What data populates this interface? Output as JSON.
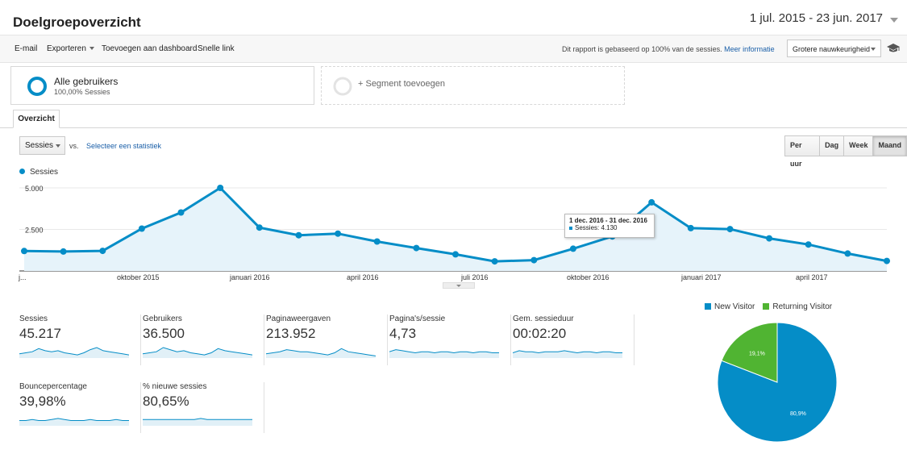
{
  "header": {
    "title": "Doelgroepoverzicht",
    "date_range": "1 jul. 2015 - 23 jun. 2017"
  },
  "toolbar": {
    "email": "E-mail",
    "export": "Exporteren",
    "add_dashboard": "Toevoegen aan dashboard",
    "quick_link": "Snelle link",
    "report_note": "Dit rapport is gebaseerd op 100% van de sessies.",
    "more_info": "Meer informatie",
    "precision": "Grotere nauwkeurigheid"
  },
  "segments": {
    "active": {
      "name": "Alle gebruikers",
      "sub": "100,00% Sessies"
    },
    "add": "+ Segment toevoegen"
  },
  "tabs": {
    "overview": "Overzicht"
  },
  "controls": {
    "metric": "Sessies",
    "vs": "vs.",
    "select_stat": "Selecteer een statistiek",
    "granularity": [
      "Per uur",
      "Dag",
      "Week",
      "Maand"
    ],
    "active_granularity": "Maand"
  },
  "chart_data": {
    "type": "area",
    "series": [
      {
        "name": "Sessies",
        "values": [
          1200,
          1170,
          1210,
          2550,
          3520,
          5000,
          2610,
          2150,
          2250,
          1770,
          1380,
          1000,
          580,
          650,
          1340,
          2080,
          4130,
          2580,
          2520,
          1960,
          1590,
          1050,
          600
        ]
      }
    ],
    "x_labels": [
      "j...",
      "oktober 2015",
      "januari 2016",
      "april 2016",
      "juli 2016",
      "oktober 2016",
      "januari 2017",
      "april 2017"
    ],
    "y_ticks": [
      "5.000",
      "2.500"
    ],
    "ylim": [
      0,
      5000
    ],
    "color": "#058dc7",
    "grid": true
  },
  "tooltip": {
    "period": "1 dec. 2016 - 31 dec. 2016",
    "label": "Sessies: 4.130"
  },
  "metrics": [
    {
      "label": "Sessies",
      "value": "45.217"
    },
    {
      "label": "Gebruikers",
      "value": "36.500"
    },
    {
      "label": "Paginaweergaven",
      "value": "213.952"
    },
    {
      "label": "Pagina's/sessie",
      "value": "4,73"
    },
    {
      "label": "Gem. sessieduur",
      "value": "00:02:20"
    },
    {
      "label": "Bouncepercentage",
      "value": "39,98%"
    },
    {
      "label": "% nieuwe sessies",
      "value": "80,65%"
    }
  ],
  "pie": {
    "legend": [
      "New Visitor",
      "Returning Visitor"
    ],
    "slices": [
      {
        "label": "80,9%",
        "value": 80.9,
        "color": "#058dc7"
      },
      {
        "label": "19,1%",
        "value": 19.1,
        "color": "#50b432"
      }
    ]
  }
}
